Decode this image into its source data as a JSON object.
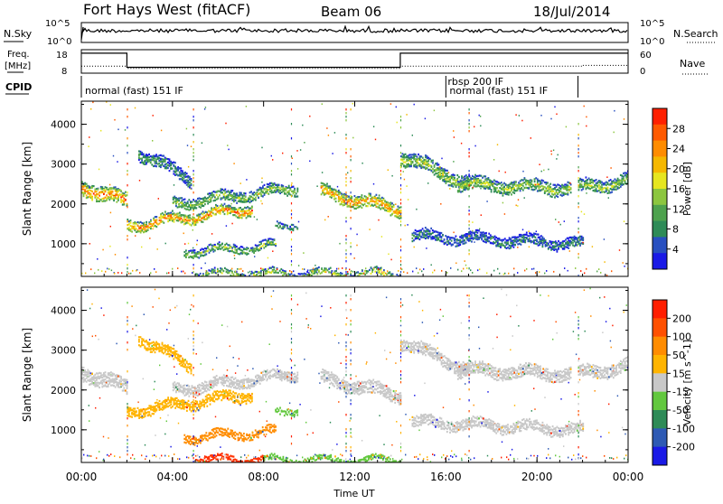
{
  "header": {
    "station": "Fort Hays West (fitACF)",
    "beam": "Beam 06",
    "date": "18/Jul/2014"
  },
  "noise_panel": {
    "left_label": "N.Sky",
    "right_label": "N.Search",
    "left_ticks": [
      "10^5",
      "10^0"
    ],
    "right_ticks": [
      "10^5",
      "10^0"
    ]
  },
  "freq_panel": {
    "left_label_1": "Freq.",
    "left_label_2": "[MHz]",
    "right_label": "Nave",
    "left_ticks": [
      "18",
      "8"
    ],
    "right_ticks": [
      "60",
      "0"
    ],
    "freq_segments": [
      {
        "start_h": 0.0,
        "end_h": 2.0,
        "value": 16.5
      },
      {
        "start_h": 2.0,
        "end_h": 14.0,
        "value": 10.5
      },
      {
        "start_h": 14.0,
        "end_h": 24.0,
        "value": 16.5
      }
    ],
    "nave_segments": [
      {
        "start_h": 0.0,
        "end_h": 2.0,
        "value": 18
      },
      {
        "start_h": 2.0,
        "end_h": 14.0,
        "value": 12
      },
      {
        "start_h": 14.0,
        "end_h": 22.0,
        "value": 18
      },
      {
        "start_h": 22.0,
        "end_h": 24.0,
        "value": 20
      }
    ]
  },
  "cpid_panel": {
    "label": "CPID",
    "modes": [
      {
        "label": "normal (fast) 151 IF",
        "start_h": 0.0,
        "end_h": 16.0
      },
      {
        "label": "rbsp 200 IF",
        "start_h": 16.0,
        "end_h": 16.0
      },
      {
        "label": "normal (fast) 151 IF",
        "start_h": 16.0,
        "end_h": 21.8
      }
    ]
  },
  "chart_data": [
    {
      "type": "heatmap",
      "name": "power",
      "ylabel": "Slant Range [km]",
      "yticks": [
        1000,
        2000,
        3000,
        4000
      ],
      "ylim": [
        180,
        4580
      ],
      "xlim": [
        0,
        24
      ],
      "colorbar": {
        "label": "Power [dB]",
        "ticks": [
          "4",
          "8",
          "12",
          "16",
          "20",
          "24",
          "28"
        ],
        "colors": [
          "#1a1ae6",
          "#2850c0",
          "#2e8b57",
          "#4ea24e",
          "#8cc63f",
          "#e6e620",
          "#f5b800",
          "#ff8c00",
          "#ff5a00",
          "#ff2000"
        ]
      },
      "bands": [
        {
          "t0": 0.0,
          "t1": 2.0,
          "r0": 2450,
          "r1": 2050,
          "w": 350,
          "level": 0.85
        },
        {
          "t0": 2.0,
          "t1": 7.5,
          "r0": 1450,
          "r1": 1900,
          "w": 250,
          "level": 0.8
        },
        {
          "t0": 4.0,
          "t1": 9.5,
          "r0": 2000,
          "r1": 2400,
          "w": 250,
          "level": 0.45
        },
        {
          "t0": 2.5,
          "t1": 4.8,
          "r0": 3300,
          "r1": 2600,
          "w": 300,
          "level": 0.3
        },
        {
          "t0": 4.5,
          "t1": 8.5,
          "r0": 800,
          "r1": 950,
          "w": 200,
          "level": 0.45
        },
        {
          "t0": 8.5,
          "t1": 9.5,
          "r0": 1400,
          "r1": 1500,
          "w": 150,
          "level": 0.35
        },
        {
          "t0": 10.5,
          "t1": 14.0,
          "r0": 2300,
          "r1": 1850,
          "w": 300,
          "level": 0.8
        },
        {
          "t0": 14.0,
          "t1": 17.0,
          "r0": 3200,
          "r1": 2500,
          "w": 350,
          "level": 0.5
        },
        {
          "t0": 16.5,
          "t1": 21.5,
          "r0": 2500,
          "r1": 2400,
          "w": 300,
          "level": 0.5
        },
        {
          "t0": 14.5,
          "t1": 22.0,
          "r0": 1200,
          "r1": 1000,
          "w": 250,
          "level": 0.25
        },
        {
          "t0": 21.8,
          "t1": 24.0,
          "r0": 2400,
          "r1": 2600,
          "w": 300,
          "level": 0.5
        },
        {
          "t0": 5.0,
          "t1": 14.0,
          "r0": 250,
          "r1": 250,
          "w": 150,
          "level": 0.55
        }
      ]
    },
    {
      "type": "heatmap",
      "name": "velocity",
      "ylabel": "Slant Range [km]",
      "xlabel": "Time UT",
      "xticks": [
        "00:00",
        "04:00",
        "08:00",
        "12:00",
        "16:00",
        "20:00",
        "00:00"
      ],
      "yticks": [
        1000,
        2000,
        3000,
        4000
      ],
      "ylim": [
        180,
        4580
      ],
      "xlim": [
        0,
        24
      ],
      "colorbar": {
        "label": "Velocity [m s^-1]",
        "ticks": [
          "200",
          "100",
          "50",
          "15",
          "-15",
          "-50",
          "-100",
          "-200"
        ],
        "colors": [
          "#1a1ae6",
          "#2e5ab4",
          "#2e8b57",
          "#62c83e",
          "#c8c8c8",
          "#ffb400",
          "#ff8c00",
          "#ff5000",
          "#ff1e00"
        ]
      },
      "bands": [
        {
          "t0": 0.0,
          "t1": 2.0,
          "r0": 2450,
          "r1": 2050,
          "w": 350,
          "color": "#c8c8c8"
        },
        {
          "t0": 2.0,
          "t1": 7.5,
          "r0": 1450,
          "r1": 1900,
          "w": 250,
          "color": "#ffb400"
        },
        {
          "t0": 4.0,
          "t1": 9.5,
          "r0": 2000,
          "r1": 2400,
          "w": 250,
          "color": "#c8c8c8"
        },
        {
          "t0": 2.5,
          "t1": 4.8,
          "r0": 3300,
          "r1": 2600,
          "w": 250,
          "color": "#ffb400"
        },
        {
          "t0": 4.5,
          "t1": 8.5,
          "r0": 800,
          "r1": 950,
          "w": 200,
          "color": "#ff8c00"
        },
        {
          "t0": 8.5,
          "t1": 9.5,
          "r0": 1400,
          "r1": 1500,
          "w": 150,
          "color": "#62c83e"
        },
        {
          "t0": 10.5,
          "t1": 14.0,
          "r0": 2300,
          "r1": 1850,
          "w": 300,
          "color": "#c8c8c8"
        },
        {
          "t0": 14.0,
          "t1": 17.0,
          "r0": 3200,
          "r1": 2500,
          "w": 300,
          "color": "#c8c8c8"
        },
        {
          "t0": 16.5,
          "t1": 21.5,
          "r0": 2500,
          "r1": 2400,
          "w": 300,
          "color": "#c8c8c8"
        },
        {
          "t0": 14.5,
          "t1": 22.0,
          "r0": 1200,
          "r1": 1000,
          "w": 250,
          "color": "#c8c8c8"
        },
        {
          "t0": 21.8,
          "t1": 24.0,
          "r0": 2400,
          "r1": 2600,
          "w": 300,
          "color": "#c8c8c8"
        },
        {
          "t0": 5.0,
          "t1": 8.0,
          "r0": 250,
          "r1": 250,
          "w": 150,
          "color": "#ff3000"
        },
        {
          "t0": 8.0,
          "t1": 14.0,
          "r0": 250,
          "r1": 250,
          "w": 120,
          "color": "#62c83e"
        }
      ]
    }
  ]
}
